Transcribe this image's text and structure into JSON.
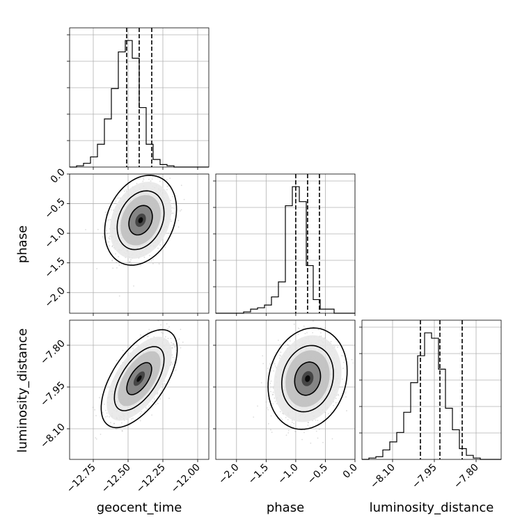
{
  "chart_data": {
    "type": "corner",
    "parameters": [
      "geocent_time",
      "phase",
      "luminosity_distance"
    ],
    "axis_ranges": {
      "geocent_time": [
        -12.92,
        -11.92
      ],
      "phase": [
        -2.35,
        0.0
      ],
      "luminosity_distance": [
        -8.21,
        -7.71
      ]
    },
    "ticks": {
      "geocent_time": [
        -12.75,
        -12.5,
        -12.25,
        -12.0
      ],
      "phase": [
        -2.0,
        -1.5,
        -1.0,
        -0.5,
        0.0
      ],
      "luminosity_distance": [
        -8.1,
        -7.95,
        -7.8
      ]
    },
    "tick_labels": {
      "geocent_time": [
        "−12.75",
        "−12.50",
        "−12.25",
        "−12.00"
      ],
      "phase": [
        "−2.0",
        "−1.5",
        "−1.0",
        "−0.5",
        "0.0"
      ],
      "luminosity_distance": [
        "−8.10",
        "−7.95",
        "−7.80"
      ]
    },
    "grid": true,
    "histograms": {
      "geocent_time": {
        "bins": 20,
        "counts": [
          0,
          1,
          3,
          8,
          18,
          38,
          62,
          91,
          100,
          86,
          47,
          18,
          6,
          2,
          1,
          0,
          0,
          0,
          0,
          0
        ],
        "quantiles": [
          -12.51,
          -12.42,
          -12.33
        ]
      },
      "phase": {
        "bins": 20,
        "counts": [
          0,
          0,
          0,
          0,
          1,
          3,
          4,
          6,
          12,
          23,
          79,
          93,
          82,
          35,
          10,
          3,
          3,
          0,
          0,
          0
        ],
        "quantiles": [
          -1.0,
          -0.8,
          -0.6
        ]
      },
      "luminosity_distance": {
        "bins": 20,
        "counts": [
          0,
          1,
          2,
          7,
          13,
          20,
          35,
          57,
          77,
          94,
          90,
          67,
          38,
          22,
          8,
          3,
          1,
          0,
          0,
          0
        ],
        "quantiles": [
          -8.0,
          -7.93,
          -7.85
        ]
      }
    },
    "pairs": [
      {
        "x": "geocent_time",
        "y": "phase",
        "center": [
          -12.41,
          -0.78
        ],
        "sigma": [
          0.085,
          0.25
        ],
        "rho": 0.25
      },
      {
        "x": "geocent_time",
        "y": "luminosity_distance",
        "center": [
          -12.42,
          -7.92
        ],
        "sigma": [
          0.09,
          0.058
        ],
        "rho": 0.6
      },
      {
        "x": "phase",
        "y": "luminosity_distance",
        "center": [
          -0.8,
          -7.92
        ],
        "sigma": [
          0.22,
          0.06
        ],
        "rho": 0.15
      }
    ],
    "contour_levels": [
      0.39,
      0.86,
      0.99
    ]
  }
}
